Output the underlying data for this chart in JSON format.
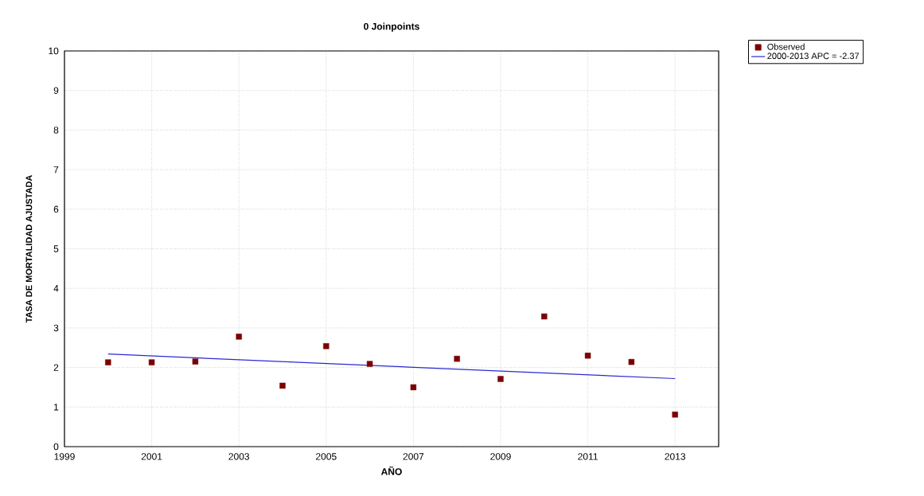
{
  "chart_data": {
    "type": "scatter",
    "title": "0 Joinpoints",
    "xlabel": "AÑO",
    "ylabel": "TASA DE MORTALIDAD AJUSTADA",
    "xlim": [
      1999,
      2014
    ],
    "xticks": [
      1999,
      2001,
      2003,
      2005,
      2007,
      2009,
      2011,
      2013
    ],
    "ylim": [
      0,
      10
    ],
    "yticks": [
      0,
      1,
      2,
      3,
      4,
      5,
      6,
      7,
      8,
      9,
      10
    ],
    "grid": true,
    "legend": "top right",
    "series": [
      {
        "name": "Observed",
        "marker": "square",
        "color": "#7b0000",
        "x": [
          2000,
          2001,
          2002,
          2003,
          2004,
          2005,
          2006,
          2007,
          2008,
          2009,
          2010,
          2011,
          2012,
          2013
        ],
        "values": [
          2.13,
          2.13,
          2.15,
          2.78,
          1.54,
          2.54,
          2.09,
          1.5,
          2.22,
          1.71,
          3.29,
          2.3,
          2.14,
          0.81
        ]
      },
      {
        "name": "2000-2013 APC  = -2.37",
        "type": "line",
        "marker": "none",
        "line_style": "solid",
        "color": "#2a2ad0",
        "x": [
          2000,
          2013
        ],
        "values": [
          2.34,
          1.72
        ]
      }
    ]
  }
}
